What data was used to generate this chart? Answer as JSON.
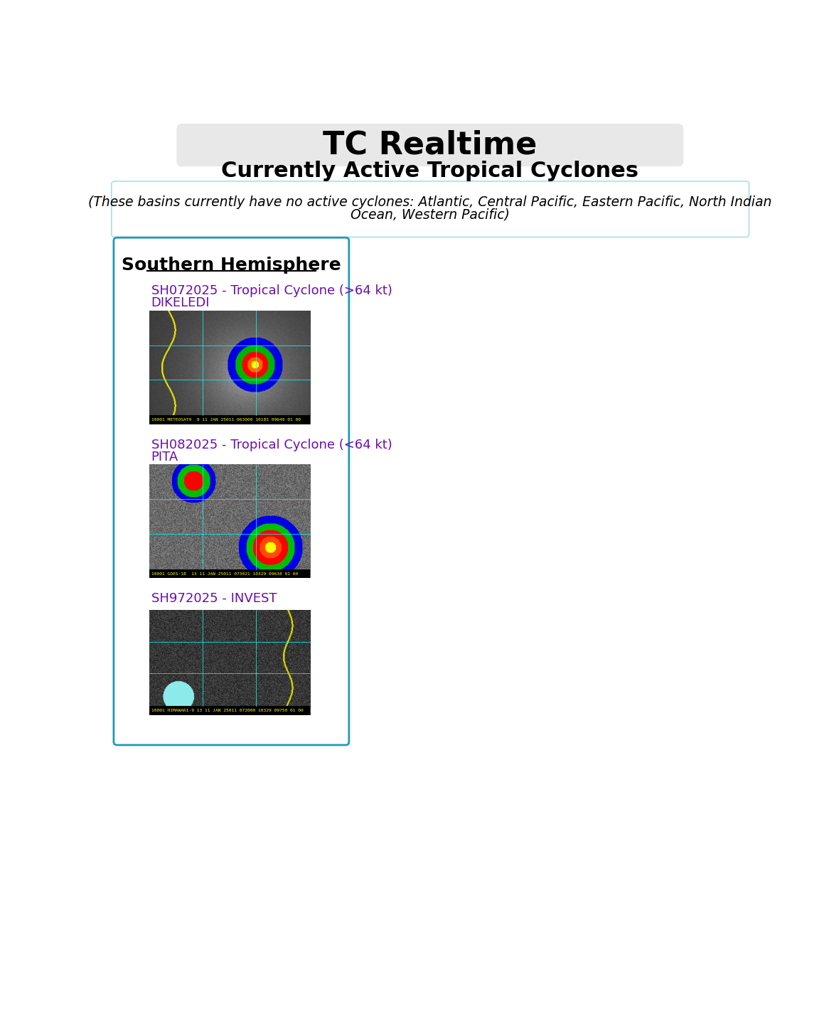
{
  "title": "TC Realtime",
  "subtitle": "Currently Active Tropical Cyclones",
  "no_active_line1": "(These basins currently have no active cyclones: Atlantic, Central Pacific, Eastern Pacific, North Indian",
  "no_active_line2": "Ocean, Western Pacific)",
  "section_title": "Southern Hemisphere",
  "entries": [
    {
      "link_text": "SH072025 - Tropical Cyclone (>64 kt)",
      "name": "DIKELEDI",
      "img_label": "10001 METEOSAT9  9 11 JAN 25011 063000 10183 09640 01 00"
    },
    {
      "link_text": "SH082025 - Tropical Cyclone (<64 kt)",
      "name": "PITA",
      "img_label": "10001 GOES-18  13 11 JAN 25011 073021 10329 09638 01 00"
    },
    {
      "link_text": "SH972025 - INVEST",
      "name": "",
      "img_label": "10001 HIMAWARI-9 13 11 JAN 25011 072000 10329 09750 01 00"
    }
  ],
  "bg_color": "#ffffff",
  "title_bg": "#e8e8e8",
  "title_fg": "#000000",
  "subtitle_fg": "#000000",
  "section_fg": "#000000",
  "link_fg": "#6a0dad",
  "border_color": "#2299bb",
  "no_active_border": "#aaddee",
  "separator_color": "#888888"
}
